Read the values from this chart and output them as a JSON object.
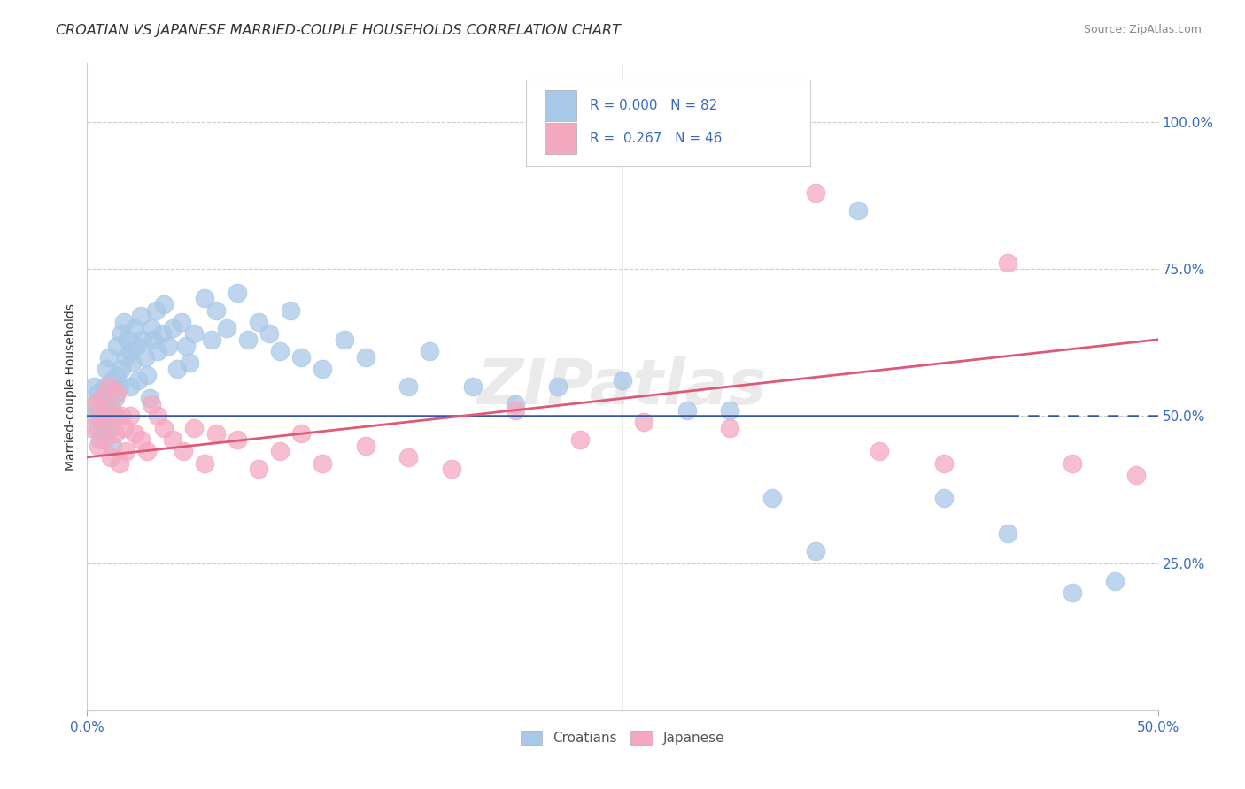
{
  "title": "CROATIAN VS JAPANESE MARRIED-COUPLE HOUSEHOLDS CORRELATION CHART",
  "source": "Source: ZipAtlas.com",
  "ylabel": "Married-couple Households",
  "legend_r_croatians": "0.000",
  "legend_n_croatians": "82",
  "legend_r_japanese": "0.267",
  "legend_n_japanese": "46",
  "color_croatians": "#a8c8e8",
  "color_japanese": "#f4a8c0",
  "color_blue_line": "#3355aa",
  "color_pink_line": "#e05878",
  "color_blue_text": "#3a6abf",
  "watermark": "ZIPatlas",
  "xlim": [
    0.0,
    0.5
  ],
  "ylim": [
    0.0,
    1.1
  ],
  "grid_color": "#cccccc",
  "spine_color": "#cccccc",
  "cr_x": [
    0.002,
    0.003,
    0.004,
    0.005,
    0.005,
    0.006,
    0.006,
    0.007,
    0.007,
    0.008,
    0.008,
    0.009,
    0.009,
    0.01,
    0.01,
    0.011,
    0.011,
    0.012,
    0.012,
    0.013,
    0.013,
    0.014,
    0.014,
    0.015,
    0.016,
    0.016,
    0.017,
    0.018,
    0.019,
    0.02,
    0.02,
    0.021,
    0.022,
    0.023,
    0.024,
    0.025,
    0.026,
    0.027,
    0.028,
    0.029,
    0.03,
    0.031,
    0.032,
    0.033,
    0.035,
    0.036,
    0.038,
    0.04,
    0.042,
    0.044,
    0.046,
    0.048,
    0.05,
    0.055,
    0.058,
    0.06,
    0.065,
    0.07,
    0.075,
    0.08,
    0.085,
    0.09,
    0.095,
    0.1,
    0.11,
    0.12,
    0.13,
    0.15,
    0.16,
    0.18,
    0.2,
    0.22,
    0.25,
    0.28,
    0.32,
    0.36,
    0.4,
    0.43,
    0.46,
    0.48,
    0.3,
    0.34
  ],
  "cr_y": [
    0.52,
    0.55,
    0.5,
    0.48,
    0.54,
    0.51,
    0.46,
    0.53,
    0.49,
    0.55,
    0.47,
    0.52,
    0.58,
    0.6,
    0.5,
    0.54,
    0.48,
    0.56,
    0.45,
    0.53,
    0.5,
    0.62,
    0.57,
    0.55,
    0.64,
    0.58,
    0.66,
    0.6,
    0.63,
    0.55,
    0.61,
    0.59,
    0.65,
    0.62,
    0.56,
    0.67,
    0.63,
    0.6,
    0.57,
    0.53,
    0.65,
    0.63,
    0.68,
    0.61,
    0.64,
    0.69,
    0.62,
    0.65,
    0.58,
    0.66,
    0.62,
    0.59,
    0.64,
    0.7,
    0.63,
    0.68,
    0.65,
    0.71,
    0.63,
    0.66,
    0.64,
    0.61,
    0.68,
    0.6,
    0.58,
    0.63,
    0.6,
    0.55,
    0.61,
    0.55,
    0.52,
    0.55,
    0.56,
    0.51,
    0.36,
    0.85,
    0.36,
    0.3,
    0.2,
    0.22,
    0.51,
    0.27
  ],
  "jp_x": [
    0.002,
    0.004,
    0.005,
    0.006,
    0.007,
    0.008,
    0.009,
    0.01,
    0.011,
    0.012,
    0.013,
    0.014,
    0.015,
    0.016,
    0.017,
    0.018,
    0.02,
    0.022,
    0.025,
    0.028,
    0.03,
    0.033,
    0.036,
    0.04,
    0.045,
    0.05,
    0.055,
    0.06,
    0.07,
    0.08,
    0.09,
    0.1,
    0.11,
    0.13,
    0.15,
    0.17,
    0.2,
    0.23,
    0.26,
    0.3,
    0.34,
    0.37,
    0.4,
    0.43,
    0.46,
    0.49
  ],
  "jp_y": [
    0.48,
    0.52,
    0.45,
    0.5,
    0.53,
    0.46,
    0.49,
    0.55,
    0.43,
    0.51,
    0.47,
    0.54,
    0.42,
    0.5,
    0.48,
    0.44,
    0.5,
    0.47,
    0.46,
    0.44,
    0.52,
    0.5,
    0.48,
    0.46,
    0.44,
    0.48,
    0.42,
    0.47,
    0.46,
    0.41,
    0.44,
    0.47,
    0.42,
    0.45,
    0.43,
    0.41,
    0.51,
    0.46,
    0.49,
    0.48,
    0.88,
    0.44,
    0.42,
    0.76,
    0.42,
    0.4
  ]
}
